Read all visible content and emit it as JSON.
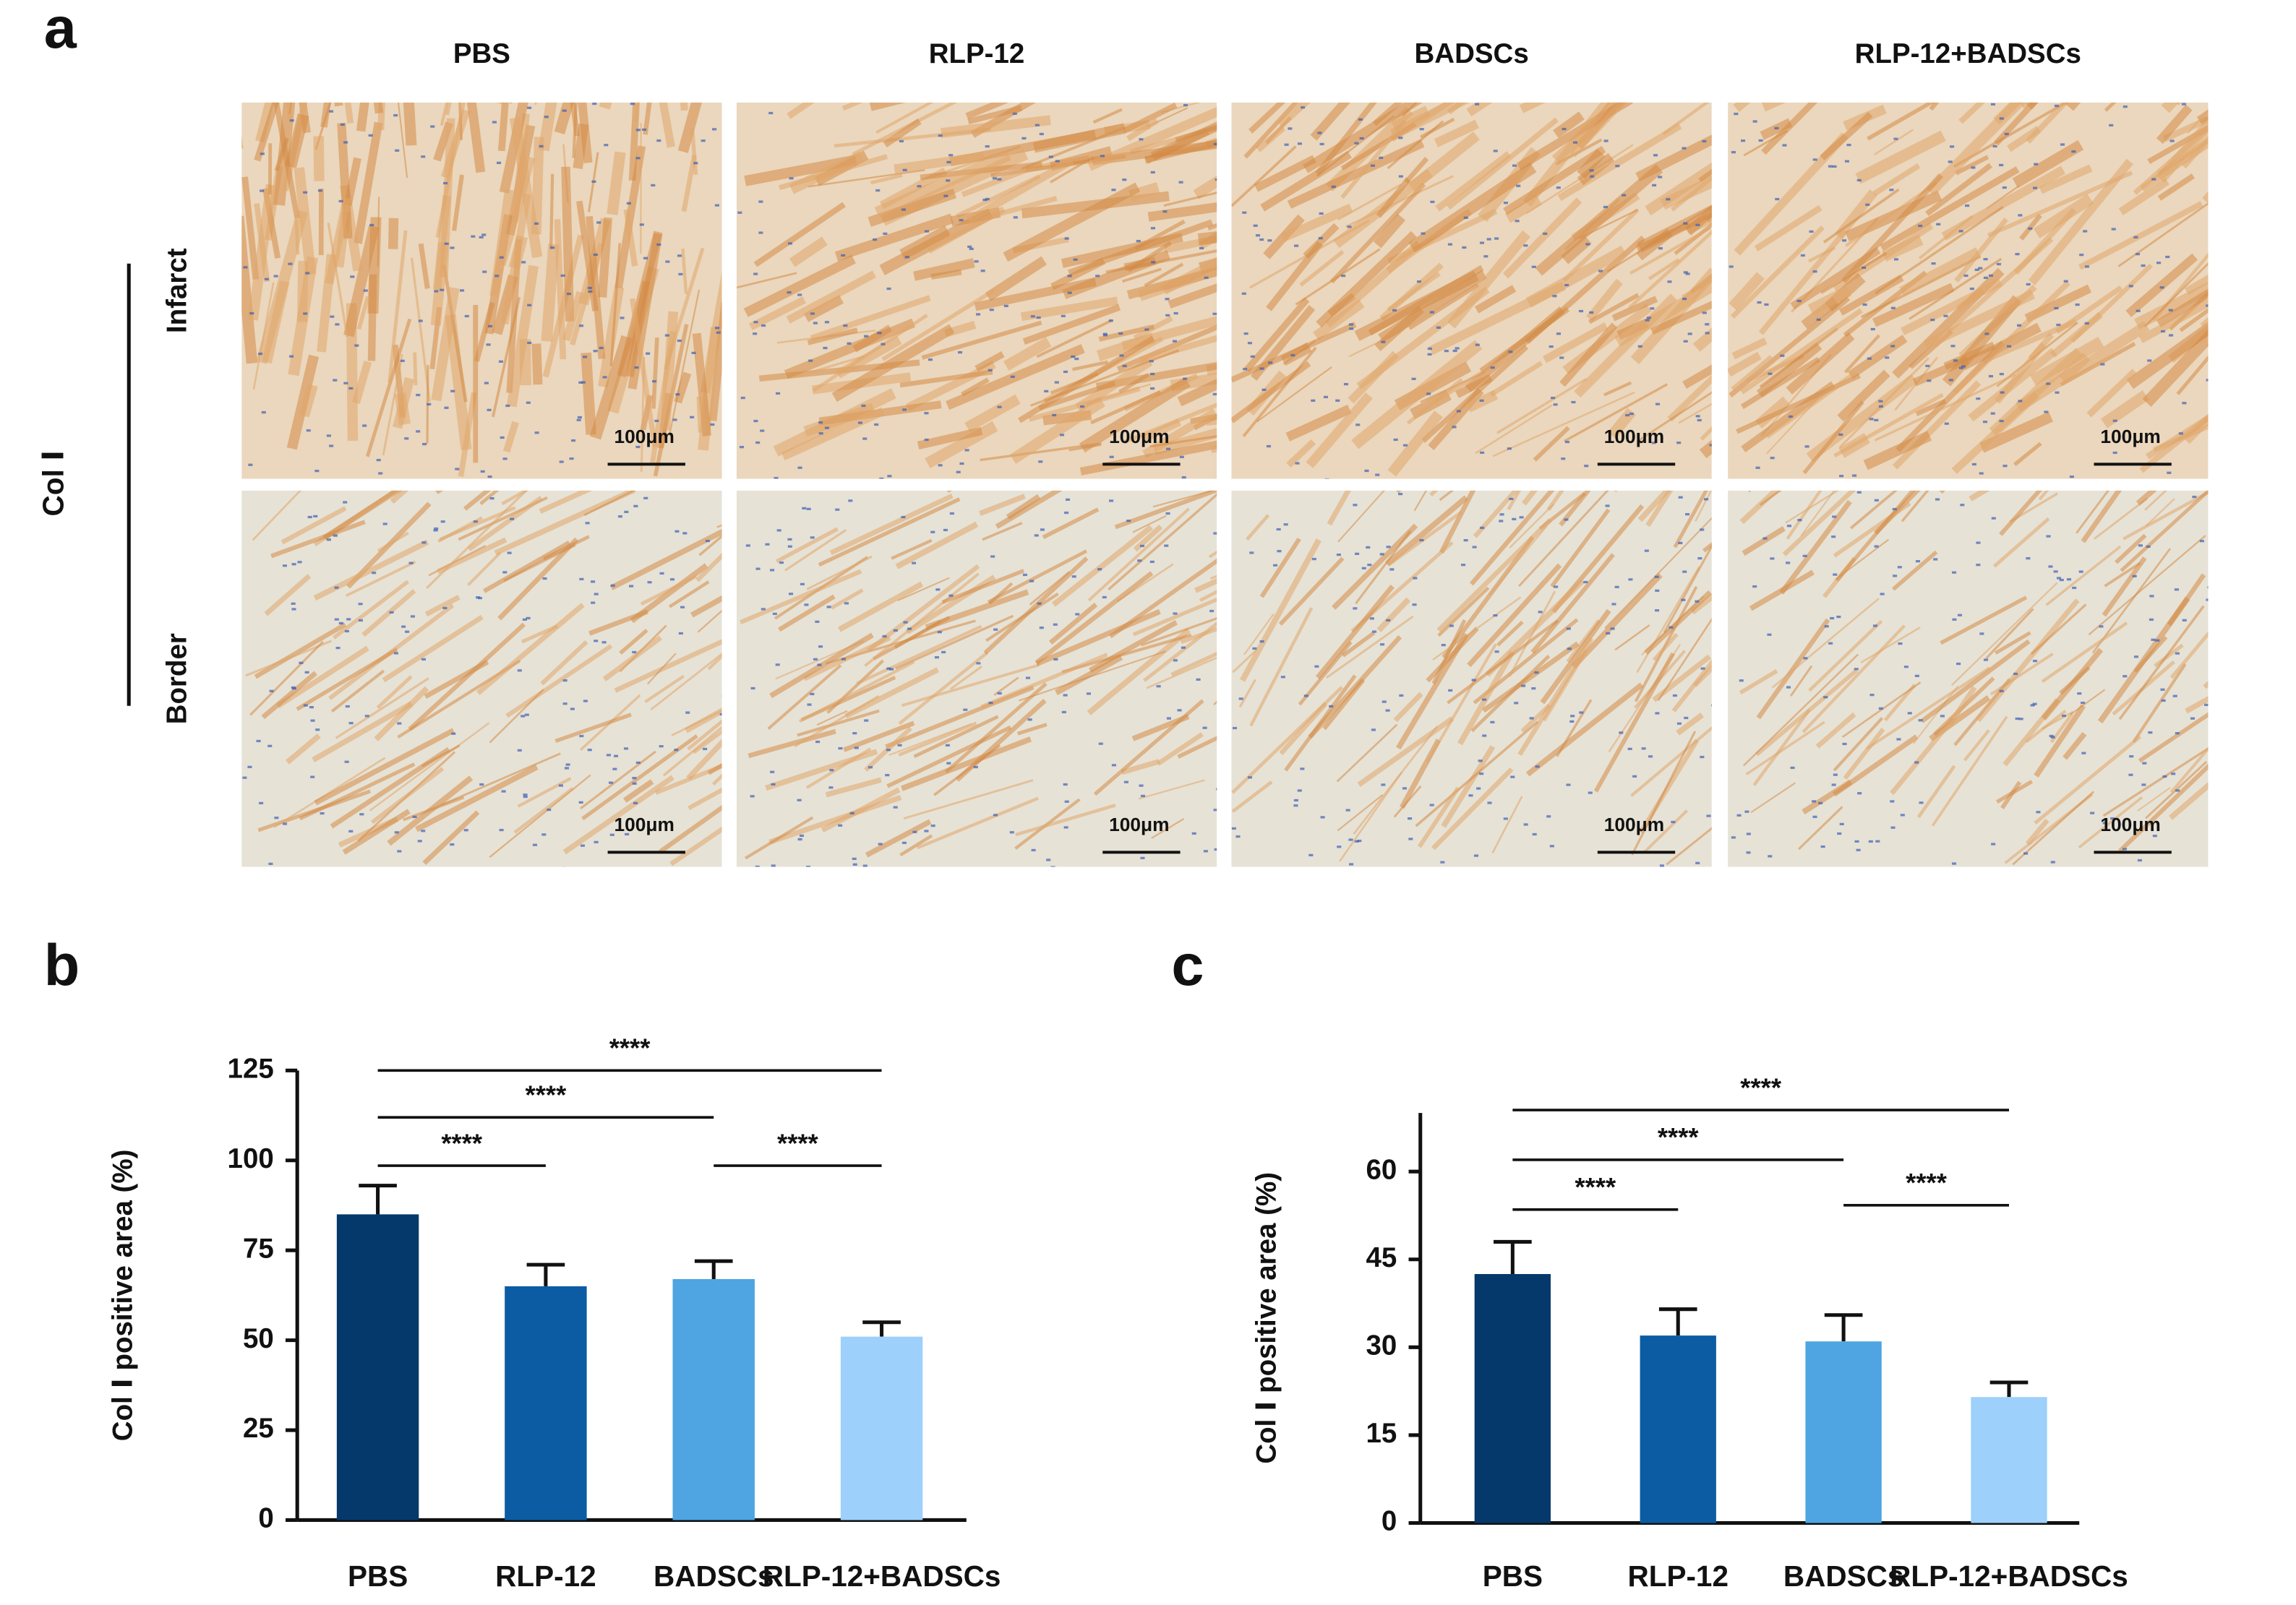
{
  "figure_a": {
    "label": "a",
    "stain": "Col Ⅰ",
    "columns": [
      "PBS",
      "RLP-12",
      "BADSCs",
      "RLP-12+BADSCs"
    ],
    "rows": [
      "Infarct",
      "Border"
    ],
    "scale_bars": [
      [
        "100μm",
        "100μm",
        "100μm",
        "100μm"
      ],
      [
        "100μm",
        "100μm",
        "100μm",
        "100μm"
      ]
    ]
  },
  "panel_labels": [
    "b",
    "c"
  ],
  "chart_data": [
    {
      "type": "bar",
      "y_label": "Col Ⅰ positive area (%)",
      "categories": [
        "PBS",
        "RLP-12",
        "BADSCs",
        "RLP-12+BADSCs"
      ],
      "values": [
        85,
        65,
        67,
        51
      ],
      "errors": [
        8,
        6,
        5,
        4
      ],
      "colors": [
        "#05386b",
        "#0b5ca3",
        "#4ea5e2",
        "#9dd0fb"
      ],
      "ylim": [
        0,
        125
      ],
      "yticks": [
        0,
        25,
        50,
        75,
        100,
        125
      ],
      "significance": [
        {
          "pair": [
            0,
            3
          ],
          "label": "****"
        },
        {
          "pair": [
            0,
            2
          ],
          "label": "****"
        },
        {
          "pair": [
            0,
            1
          ],
          "label": "****"
        },
        {
          "pair": [
            2,
            3
          ],
          "label": "****"
        }
      ]
    },
    {
      "type": "bar",
      "y_label": "Col Ⅰ positive area (%)",
      "categories": [
        "PBS",
        "RLP-12",
        "BADSCs",
        "RLP-12+BADSCs"
      ],
      "values": [
        42.5,
        32,
        31,
        21.5
      ],
      "errors": [
        5.5,
        4.5,
        4.5,
        2.5
      ],
      "colors": [
        "#05386b",
        "#0b5ca3",
        "#4ea5e2",
        "#9dd0fb"
      ],
      "ylim": [
        0,
        70
      ],
      "yticks": [
        0,
        15,
        30,
        45,
        60
      ],
      "significance": [
        {
          "pair": [
            0,
            3
          ],
          "label": "****"
        },
        {
          "pair": [
            0,
            2
          ],
          "label": "****"
        },
        {
          "pair": [
            0,
            1
          ],
          "label": "****"
        },
        {
          "pair": [
            2,
            3
          ],
          "label": "****"
        }
      ]
    }
  ]
}
